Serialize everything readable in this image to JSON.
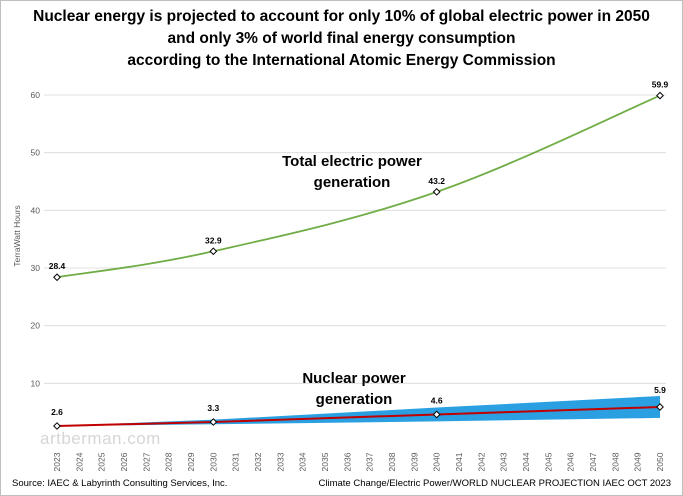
{
  "title_lines": [
    "Nuclear energy is projected to account for only 10% of global electric power in 2050",
    "and only 3% of world final energy consumption",
    "according to the International Atomic Energy Commission"
  ],
  "footer": {
    "source": "Source: IAEC & Labyrinth Consulting Services, Inc.",
    "credit": "Climate Change/Electric Power/WORLD NUCLEAR PROJECTION IAEC OCT 2023"
  },
  "watermark": "artberman.com",
  "colors": {
    "total_line": "#70ad47",
    "nuclear_line": "#c00000",
    "nuclear_band": "#1f9be0",
    "grid": "#d9d9d9"
  },
  "chart_data": {
    "type": "line",
    "ylabel": "TerraWatt Hours",
    "xlabel": "",
    "ylim": [
      0,
      60
    ],
    "yticks": [
      10,
      20,
      30,
      40,
      50,
      60
    ],
    "x_categories": [
      "2023",
      "2024",
      "2025",
      "2026",
      "2027",
      "2028",
      "2029",
      "2030",
      "2031",
      "2032",
      "2033",
      "2034",
      "2035",
      "2036",
      "2037",
      "2038",
      "2039",
      "2040",
      "2041",
      "2042",
      "2043",
      "2044",
      "2045",
      "2046",
      "2047",
      "2048",
      "2049",
      "2050"
    ],
    "grid": "horizontal",
    "annotations": [
      {
        "lines": [
          "Total electric power",
          "generation"
        ],
        "series": "total"
      },
      {
        "lines": [
          "Nuclear power",
          "generation"
        ],
        "series": "nuclear"
      }
    ],
    "series": [
      {
        "id": "total",
        "points": [
          {
            "x": "2023",
            "y": 28.4,
            "label": "28.4"
          },
          {
            "x": "2030",
            "y": 32.9,
            "label": "32.9"
          },
          {
            "x": "2040",
            "y": 43.2,
            "label": "43.2"
          },
          {
            "x": "2050",
            "y": 59.9,
            "label": "59.9"
          }
        ]
      },
      {
        "id": "nuclear",
        "points": [
          {
            "x": "2023",
            "y": 2.6,
            "label": "2.6"
          },
          {
            "x": "2030",
            "y": 3.3,
            "label": "3.3"
          },
          {
            "x": "2040",
            "y": 4.6,
            "label": "4.6"
          },
          {
            "x": "2050",
            "y": 5.9,
            "label": "5.9"
          }
        ],
        "band": [
          {
            "x": "2023",
            "low": 2.6,
            "high": 2.6
          },
          {
            "x": "2030",
            "low": 2.9,
            "high": 3.7
          },
          {
            "x": "2040",
            "low": 3.4,
            "high": 5.8
          },
          {
            "x": "2050",
            "low": 4.0,
            "high": 7.8
          }
        ]
      }
    ]
  }
}
